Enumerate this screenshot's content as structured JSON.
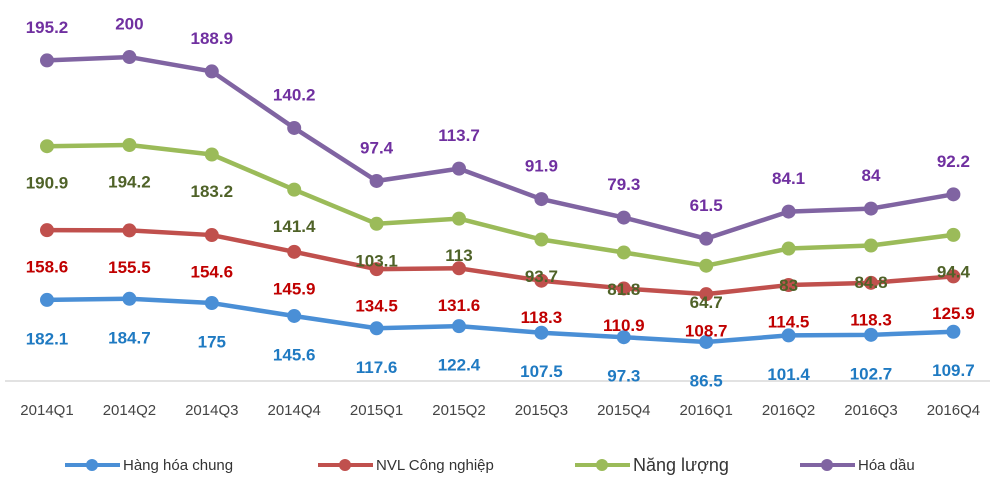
{
  "chart_data": {
    "type": "line",
    "stacked": true,
    "categories": [
      "2014Q1",
      "2014Q2",
      "2014Q3",
      "2014Q4",
      "2015Q1",
      "2015Q2",
      "2015Q3",
      "2015Q4",
      "2016Q1",
      "2016Q2",
      "2016Q3",
      "2016Q4"
    ],
    "ylim": [
      0,
      780
    ],
    "series": [
      {
        "name": "Hàng hóa chung",
        "color": "#4a8fd6",
        "label_color": "#1f7ac2",
        "values": [
          182.1,
          184.7,
          175,
          145.6,
          117.6,
          122.4,
          107.5,
          97.3,
          86.5,
          101.4,
          102.7,
          109.7
        ]
      },
      {
        "name": "NVL Công nghiệp",
        "color": "#c0504d",
        "label_color": "#c00000",
        "values": [
          158.6,
          155.5,
          154.6,
          145.9,
          134.5,
          131.6,
          118.3,
          110.9,
          108.7,
          114.5,
          118.3,
          125.9
        ]
      },
      {
        "name": "Năng lượng",
        "color": "#9bbb59",
        "label_color": "#4f6228",
        "values": [
          190.9,
          194.2,
          183.2,
          141.4,
          103.1,
          113,
          93.7,
          81.8,
          64.7,
          83,
          84.8,
          94.4
        ]
      },
      {
        "name": "Hóa dầu",
        "color": "#8064a2",
        "label_color": "#7030a0",
        "values": [
          195.2,
          200,
          188.9,
          140.2,
          97.4,
          113.7,
          91.9,
          79.3,
          61.5,
          84.1,
          84,
          92.2
        ]
      }
    ],
    "legend": "bottom"
  }
}
